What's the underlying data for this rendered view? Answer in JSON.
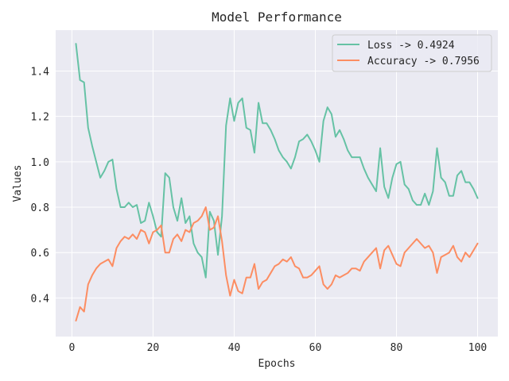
{
  "chart_data": {
    "type": "line",
    "title": "Model Performance",
    "xlabel": "Epochs",
    "ylabel": "Values",
    "xlim": [
      -4,
      105
    ],
    "ylim": [
      0.23,
      1.58
    ],
    "x_ticks": [
      0,
      20,
      40,
      60,
      80,
      100
    ],
    "y_ticks": [
      0.4,
      0.6,
      0.8,
      1.0,
      1.2,
      1.4
    ],
    "x_tick_labels": [
      "0",
      "20",
      "40",
      "60",
      "80",
      "100"
    ],
    "y_tick_labels": [
      "0.4",
      "0.6",
      "0.8",
      "1.0",
      "1.2",
      "1.4"
    ],
    "grid": true,
    "legend_position": "top-right",
    "x": [
      1,
      2,
      3,
      4,
      5,
      6,
      7,
      8,
      9,
      10,
      11,
      12,
      13,
      14,
      15,
      16,
      17,
      18,
      19,
      20,
      21,
      22,
      23,
      24,
      25,
      26,
      27,
      28,
      29,
      30,
      31,
      32,
      33,
      34,
      35,
      36,
      37,
      38,
      39,
      40,
      41,
      42,
      43,
      44,
      45,
      46,
      47,
      48,
      49,
      50,
      51,
      52,
      53,
      54,
      55,
      56,
      57,
      58,
      59,
      60,
      61,
      62,
      63,
      64,
      65,
      66,
      67,
      68,
      69,
      70,
      71,
      72,
      73,
      74,
      75,
      76,
      77,
      78,
      79,
      80,
      81,
      82,
      83,
      84,
      85,
      86,
      87,
      88,
      89,
      90,
      91,
      92,
      93,
      94,
      95,
      96,
      97,
      98,
      99,
      100
    ],
    "series": [
      {
        "name": "Loss -> 0.4924",
        "color": "#66c2a5",
        "values": [
          1.52,
          1.36,
          1.35,
          1.15,
          1.07,
          1.0,
          0.93,
          0.96,
          1.0,
          1.01,
          0.88,
          0.8,
          0.8,
          0.82,
          0.8,
          0.81,
          0.73,
          0.74,
          0.82,
          0.76,
          0.69,
          0.67,
          0.95,
          0.93,
          0.8,
          0.74,
          0.84,
          0.73,
          0.76,
          0.64,
          0.6,
          0.58,
          0.49,
          0.78,
          0.74,
          0.59,
          0.76,
          1.16,
          1.28,
          1.18,
          1.26,
          1.28,
          1.15,
          1.14,
          1.04,
          1.26,
          1.17,
          1.17,
          1.14,
          1.1,
          1.05,
          1.02,
          1.0,
          0.97,
          1.02,
          1.09,
          1.1,
          1.12,
          1.09,
          1.05,
          1.0,
          1.18,
          1.24,
          1.21,
          1.11,
          1.14,
          1.1,
          1.05,
          1.02,
          1.02,
          1.02,
          0.97,
          0.93,
          0.9,
          0.87,
          1.06,
          0.89,
          0.84,
          0.93,
          0.99,
          1.0,
          0.9,
          0.88,
          0.83,
          0.81,
          0.81,
          0.86,
          0.81,
          0.87,
          1.06,
          0.93,
          0.91,
          0.85,
          0.85,
          0.94,
          0.96,
          0.91,
          0.91,
          0.88,
          0.84
        ]
      },
      {
        "name": "Accuracy -> 0.7956",
        "color": "#fc8d62",
        "values": [
          0.3,
          0.36,
          0.34,
          0.46,
          0.5,
          0.53,
          0.55,
          0.56,
          0.57,
          0.54,
          0.62,
          0.65,
          0.67,
          0.66,
          0.68,
          0.66,
          0.7,
          0.69,
          0.64,
          0.69,
          0.7,
          0.72,
          0.6,
          0.6,
          0.66,
          0.68,
          0.65,
          0.7,
          0.69,
          0.73,
          0.74,
          0.76,
          0.8,
          0.7,
          0.71,
          0.76,
          0.65,
          0.5,
          0.41,
          0.48,
          0.43,
          0.42,
          0.49,
          0.49,
          0.55,
          0.44,
          0.47,
          0.48,
          0.51,
          0.54,
          0.55,
          0.57,
          0.56,
          0.58,
          0.54,
          0.53,
          0.49,
          0.49,
          0.5,
          0.52,
          0.54,
          0.46,
          0.44,
          0.46,
          0.5,
          0.49,
          0.5,
          0.51,
          0.53,
          0.53,
          0.52,
          0.56,
          0.58,
          0.6,
          0.62,
          0.53,
          0.61,
          0.63,
          0.59,
          0.55,
          0.54,
          0.6,
          0.62,
          0.64,
          0.66,
          0.64,
          0.62,
          0.63,
          0.6,
          0.51,
          0.58,
          0.59,
          0.6,
          0.63,
          0.58,
          0.56,
          0.6,
          0.58,
          0.61,
          0.64
        ]
      }
    ]
  }
}
